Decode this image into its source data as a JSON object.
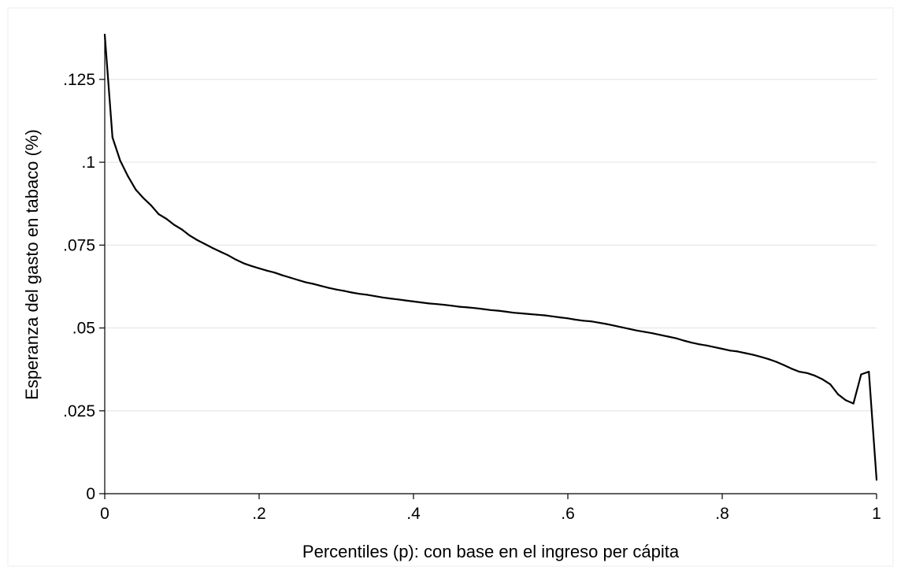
{
  "chart_data": {
    "type": "line",
    "title": "",
    "xlabel": "Percentiles (p): con base en el ingreso per cápita",
    "ylabel": "Esperanza del gasto en tabaco (%)",
    "xlim": [
      0,
      1
    ],
    "ylim": [
      0,
      0.1385
    ],
    "grid": true,
    "legend": "none",
    "x_ticks": [
      {
        "value": 0,
        "label": "0"
      },
      {
        "value": 0.2,
        "label": ".2"
      },
      {
        "value": 0.4,
        "label": ".4"
      },
      {
        "value": 0.6,
        "label": ".6"
      },
      {
        "value": 0.8,
        "label": ".8"
      },
      {
        "value": 1,
        "label": "1"
      }
    ],
    "y_ticks": [
      {
        "value": 0,
        "label": "0"
      },
      {
        "value": 0.025,
        "label": ".025"
      },
      {
        "value": 0.05,
        "label": ".05"
      },
      {
        "value": 0.075,
        "label": ".075"
      },
      {
        "value": 0.1,
        "label": ".1"
      },
      {
        "value": 0.125,
        "label": ".125"
      }
    ],
    "colors": {
      "line": "#000000",
      "grid": "#e6e6e6",
      "axis": "#000000"
    },
    "series": [
      {
        "x": [
          0,
          0.01,
          0.02,
          0.03,
          0.04,
          0.05,
          0.06,
          0.07,
          0.08,
          0.09,
          0.1,
          0.11,
          0.12,
          0.13,
          0.14,
          0.15,
          0.16,
          0.17,
          0.18,
          0.19,
          0.2,
          0.21,
          0.22,
          0.23,
          0.24,
          0.25,
          0.26,
          0.27,
          0.28,
          0.29,
          0.3,
          0.31,
          0.32,
          0.33,
          0.34,
          0.35,
          0.36,
          0.37,
          0.38,
          0.39,
          0.4,
          0.41,
          0.42,
          0.43,
          0.44,
          0.45,
          0.46,
          0.47,
          0.48,
          0.49,
          0.5,
          0.51,
          0.52,
          0.53,
          0.54,
          0.55,
          0.56,
          0.57,
          0.58,
          0.59,
          0.6,
          0.61,
          0.62,
          0.63,
          0.64,
          0.65,
          0.66,
          0.67,
          0.68,
          0.69,
          0.7,
          0.71,
          0.72,
          0.73,
          0.74,
          0.75,
          0.76,
          0.77,
          0.78,
          0.79,
          0.8,
          0.81,
          0.82,
          0.83,
          0.84,
          0.85,
          0.86,
          0.87,
          0.88,
          0.89,
          0.9,
          0.91,
          0.92,
          0.93,
          0.94,
          0.95,
          0.96,
          0.97,
          0.98,
          0.99,
          1.0
        ],
        "values": [
          0.1385,
          0.1075,
          0.1005,
          0.0958,
          0.0918,
          0.0892,
          0.087,
          0.0843,
          0.0829,
          0.0811,
          0.0797,
          0.0779,
          0.0765,
          0.0753,
          0.0741,
          0.073,
          0.0719,
          0.0706,
          0.0695,
          0.0687,
          0.068,
          0.0673,
          0.0667,
          0.0659,
          0.0652,
          0.0645,
          0.0638,
          0.0633,
          0.0627,
          0.0621,
          0.0616,
          0.0612,
          0.0607,
          0.0603,
          0.06,
          0.0596,
          0.0592,
          0.0589,
          0.0586,
          0.0583,
          0.058,
          0.0577,
          0.0574,
          0.0572,
          0.057,
          0.0567,
          0.0564,
          0.0562,
          0.056,
          0.0557,
          0.0554,
          0.0552,
          0.0549,
          0.0546,
          0.0544,
          0.0542,
          0.054,
          0.0538,
          0.0535,
          0.0532,
          0.0529,
          0.0525,
          0.0522,
          0.052,
          0.0516,
          0.0512,
          0.0507,
          0.0502,
          0.0497,
          0.0492,
          0.0488,
          0.0484,
          0.0479,
          0.0474,
          0.0469,
          0.0462,
          0.0456,
          0.0451,
          0.0447,
          0.0442,
          0.0437,
          0.0432,
          0.0429,
          0.0424,
          0.0419,
          0.0413,
          0.0406,
          0.0398,
          0.0388,
          0.0377,
          0.0368,
          0.0364,
          0.0356,
          0.0345,
          0.033,
          0.03,
          0.0282,
          0.0272,
          0.036,
          0.0368,
          0.0042
        ]
      }
    ]
  }
}
